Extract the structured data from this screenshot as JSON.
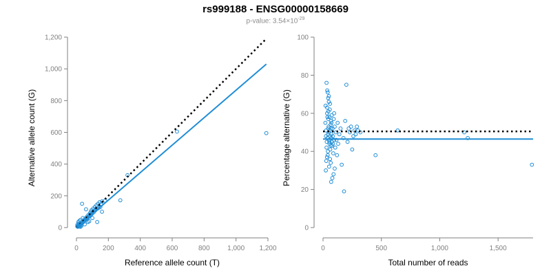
{
  "title": "rs999188 - ENSG00000158669",
  "subtitle": {
    "prefix": "p-value: 3.54×10",
    "exponent": "-29"
  },
  "colors": {
    "points": "#1f8dd6",
    "fit": "#1f8dd6",
    "reference": "#000000",
    "axis": "#7f7f7f"
  },
  "chart_data": [
    {
      "type": "scatter",
      "name": "allele-counts",
      "xlabel": "Reference allele count (T)",
      "ylabel": "Alternative allele count (G)",
      "xlim": [
        0,
        1200
      ],
      "ylim": [
        0,
        1200
      ],
      "xticks": [
        0,
        200,
        400,
        600,
        800,
        1000,
        1200
      ],
      "xtick_labels": [
        "0",
        "200",
        "400",
        "600",
        "800",
        "1,000",
        "1,200"
      ],
      "yticks": [
        0,
        200,
        400,
        600,
        800,
        1000,
        1200
      ],
      "ytick_labels": [
        "0",
        "200",
        "400",
        "600",
        "800",
        "1,000",
        "1,200"
      ],
      "reference_line": {
        "style": "dotted",
        "x": [
          0,
          1190
        ],
        "y": [
          0,
          1190
        ]
      },
      "fit_line": {
        "style": "solid",
        "x": [
          0,
          1190
        ],
        "y": [
          0,
          1030
        ]
      },
      "points": [
        [
          5,
          8
        ],
        [
          8,
          5
        ],
        [
          10,
          12
        ],
        [
          12,
          9
        ],
        [
          15,
          14
        ],
        [
          6,
          18
        ],
        [
          18,
          6
        ],
        [
          20,
          22
        ],
        [
          22,
          18
        ],
        [
          25,
          15
        ],
        [
          15,
          25
        ],
        [
          28,
          30
        ],
        [
          30,
          24
        ],
        [
          12,
          35
        ],
        [
          35,
          28
        ],
        [
          38,
          40
        ],
        [
          40,
          32
        ],
        [
          18,
          42
        ],
        [
          45,
          38
        ],
        [
          48,
          50
        ],
        [
          50,
          44
        ],
        [
          25,
          48
        ],
        [
          55,
          45
        ],
        [
          58,
          60
        ],
        [
          60,
          52
        ],
        [
          30,
          10
        ],
        [
          65,
          58
        ],
        [
          68,
          70
        ],
        [
          70,
          62
        ],
        [
          72,
          35
        ],
        [
          75,
          80
        ],
        [
          78,
          68
        ],
        [
          80,
          72
        ],
        [
          85,
          90
        ],
        [
          88,
          78
        ],
        [
          90,
          100
        ],
        [
          92,
          82
        ],
        [
          95,
          110
        ],
        [
          98,
          88
        ],
        [
          100,
          95
        ],
        [
          105,
          120
        ],
        [
          108,
          96
        ],
        [
          110,
          105
        ],
        [
          115,
          130
        ],
        [
          118,
          108
        ],
        [
          120,
          115
        ],
        [
          125,
          140
        ],
        [
          130,
          118
        ],
        [
          135,
          150
        ],
        [
          140,
          125
        ],
        [
          145,
          160
        ],
        [
          150,
          130
        ],
        [
          155,
          145
        ],
        [
          160,
          165
        ],
        [
          35,
          150
        ],
        [
          60,
          115
        ],
        [
          130,
          35
        ],
        [
          160,
          100
        ],
        [
          180,
          170
        ],
        [
          275,
          172
        ],
        [
          320,
          330
        ],
        [
          630,
          605
        ],
        [
          1190,
          595
        ],
        [
          40,
          60
        ],
        [
          52,
          20
        ],
        [
          80,
          40
        ],
        [
          100,
          60
        ],
        [
          25,
          5
        ]
      ]
    },
    {
      "type": "scatter",
      "name": "percentage-alternative",
      "xlabel": "Total number of reads",
      "ylabel": "Percentage alternative (G)",
      "xlim": [
        0,
        1800
      ],
      "ylim": [
        0,
        100
      ],
      "xticks": [
        0,
        500,
        1000,
        1500
      ],
      "xtick_labels": [
        "0",
        "500",
        "1,000",
        "1,500"
      ],
      "yticks": [
        0,
        20,
        40,
        60,
        80,
        100
      ],
      "ytick_labels": [
        "0",
        "20",
        "40",
        "60",
        "80",
        "100"
      ],
      "reference_line": {
        "style": "dotted",
        "x": [
          0,
          1800
        ],
        "y": [
          50.5,
          50.5
        ]
      },
      "fit_line": {
        "style": "solid",
        "x": [
          0,
          1800
        ],
        "y": [
          46.5,
          46.5
        ]
      },
      "points": [
        [
          20,
          55
        ],
        [
          25,
          48
        ],
        [
          30,
          42
        ],
        [
          35,
          60
        ],
        [
          40,
          38
        ],
        [
          45,
          52
        ],
        [
          22,
          64
        ],
        [
          28,
          35
        ],
        [
          32,
          45
        ],
        [
          38,
          58
        ],
        [
          42,
          40
        ],
        [
          48,
          50
        ],
        [
          50,
          66
        ],
        [
          55,
          44
        ],
        [
          60,
          36
        ],
        [
          65,
          54
        ],
        [
          70,
          47
        ],
        [
          24,
          30
        ],
        [
          36,
          72
        ],
        [
          44,
          68
        ],
        [
          52,
          32
        ],
        [
          58,
          62
        ],
        [
          62,
          41
        ],
        [
          68,
          56
        ],
        [
          72,
          49
        ],
        [
          78,
          43
        ],
        [
          82,
          52
        ],
        [
          88,
          39
        ],
        [
          92,
          57
        ],
        [
          96,
          46
        ],
        [
          26,
          51
        ],
        [
          34,
          37
        ],
        [
          46,
          61
        ],
        [
          54,
          45
        ],
        [
          66,
          34
        ],
        [
          74,
          59
        ],
        [
          84,
          48
        ],
        [
          90,
          28
        ],
        [
          100,
          53
        ],
        [
          105,
          42
        ],
        [
          110,
          50
        ],
        [
          115,
          46
        ],
        [
          120,
          38
        ],
        [
          125,
          55
        ],
        [
          130,
          44
        ],
        [
          140,
          49
        ],
        [
          150,
          52
        ],
        [
          160,
          33
        ],
        [
          175,
          47
        ],
        [
          180,
          19
        ],
        [
          190,
          56
        ],
        [
          200,
          75
        ],
        [
          210,
          45
        ],
        [
          220,
          52
        ],
        [
          230,
          50
        ],
        [
          240,
          53
        ],
        [
          250,
          41
        ],
        [
          260,
          48
        ],
        [
          270,
          51
        ],
        [
          280,
          49
        ],
        [
          290,
          53
        ],
        [
          300,
          51
        ],
        [
          320,
          50
        ],
        [
          450,
          38
        ],
        [
          640,
          51
        ],
        [
          1210,
          50
        ],
        [
          1240,
          47
        ],
        [
          1790,
          33
        ],
        [
          30,
          76
        ],
        [
          40,
          71
        ],
        [
          50,
          69
        ],
        [
          60,
          65
        ],
        [
          70,
          24
        ],
        [
          80,
          26
        ],
        [
          100,
          31
        ],
        [
          35,
          63
        ],
        [
          45,
          57
        ],
        [
          55,
          58
        ],
        [
          65,
          43
        ],
        [
          75,
          45
        ],
        [
          85,
          44
        ],
        [
          95,
          60
        ],
        [
          38,
          47
        ],
        [
          42,
          49
        ],
        [
          48,
          53
        ],
        [
          52,
          46
        ],
        [
          58,
          51
        ],
        [
          62,
          48
        ],
        [
          68,
          52
        ],
        [
          72,
          55
        ]
      ]
    }
  ]
}
